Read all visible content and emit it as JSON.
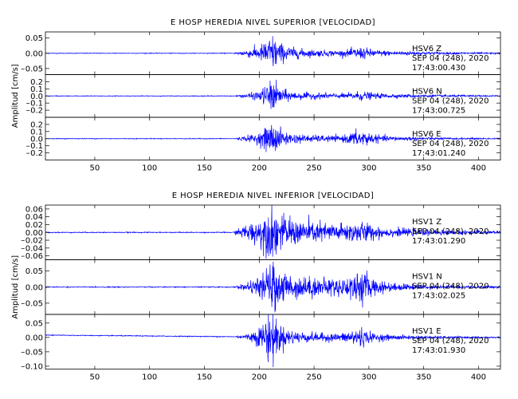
{
  "chart_data": [
    {
      "type": "line",
      "title": "E HOSP HEREDIA NIVEL SUPERIOR [VELOCIDAD]",
      "ylabel": "Amplitud [cm/s]",
      "xlim": [
        5,
        420
      ],
      "xticks": [
        50,
        100,
        150,
        200,
        250,
        300,
        350,
        400
      ],
      "series": [
        {
          "name": "HSV6 Z",
          "date": "SEP 04 (248), 2020",
          "time": "17:43:00.430",
          "ylim": [
            -0.07,
            0.07
          ],
          "yticks": [
            0.05,
            0.0,
            -0.05
          ],
          "yticklabels": [
            "0.05",
            "0.00",
            "0.05"
          ],
          "onset": 175,
          "peak": 0.055,
          "peak_time": 212,
          "x": [
            5,
            175,
            190,
            200,
            207,
            212,
            217,
            222,
            232,
            245,
            260,
            275,
            285,
            292,
            298,
            305,
            320,
            340,
            360,
            385,
            420
          ],
          "y": [
            0.0,
            0.0,
            0.012,
            0.02,
            0.04,
            0.055,
            0.038,
            0.024,
            0.016,
            0.011,
            0.009,
            0.008,
            0.013,
            0.018,
            0.015,
            0.01,
            0.007,
            0.006,
            0.004,
            0.003,
            0.002
          ]
        },
        {
          "name": "HSV6 N",
          "date": "SEP 04 (248), 2020",
          "time": "17:43:00.725",
          "ylim": [
            -0.3,
            0.3
          ],
          "yticks": [
            0.2,
            0.1,
            0.0,
            -0.1,
            -0.2
          ],
          "yticklabels": [
            "0.2",
            "0.1",
            "0.0",
            "0.1",
            "0.2"
          ],
          "onset": 175,
          "peak": 0.2,
          "peak_time": 212,
          "x": [
            5,
            175,
            190,
            200,
            207,
            212,
            217,
            222,
            232,
            245,
            260,
            275,
            285,
            292,
            298,
            305,
            320,
            340,
            360,
            385,
            420
          ],
          "y": [
            0.0,
            0.0,
            0.03,
            0.06,
            0.14,
            0.2,
            0.13,
            0.08,
            0.05,
            0.04,
            0.035,
            0.03,
            0.045,
            0.06,
            0.05,
            0.035,
            0.025,
            0.02,
            0.015,
            0.012,
            0.008
          ]
        },
        {
          "name": "HSV6 E",
          "date": "SEP 04 (248), 2020",
          "time": "17:43:01.240",
          "ylim": [
            -0.3,
            0.3
          ],
          "yticks": [
            0.2,
            0.1,
            0.0,
            -0.1,
            -0.2
          ],
          "yticklabels": [
            "0.2",
            "0.1",
            "0.0",
            "0.1",
            "0.2"
          ],
          "onset": 175,
          "peak": 0.22,
          "peak_time": 212,
          "x": [
            5,
            175,
            190,
            200,
            207,
            212,
            217,
            222,
            232,
            245,
            260,
            275,
            285,
            292,
            298,
            305,
            320,
            340,
            360,
            385,
            420
          ],
          "y": [
            0.0,
            0.0,
            0.04,
            0.07,
            0.15,
            0.22,
            0.14,
            0.09,
            0.06,
            0.045,
            0.04,
            0.035,
            0.08,
            0.11,
            0.09,
            0.05,
            0.03,
            0.022,
            0.015,
            0.01,
            0.008
          ]
        }
      ],
      "xticklabels": [
        "50",
        "100",
        "150",
        "200",
        "250",
        "300",
        "350",
        "400"
      ]
    },
    {
      "type": "line",
      "title": "E HOSP HEREDIA NIVEL INFERIOR [VELOCIDAD]",
      "ylabel": "Amplitud [cm/s]",
      "xlim": [
        5,
        420
      ],
      "xticks": [
        50,
        100,
        150,
        200,
        250,
        300,
        350,
        400
      ],
      "series": [
        {
          "name": "HSV1 Z",
          "date": "SEP 04 (248), 2020",
          "time": "17:43:01.290",
          "ylim": [
            -0.07,
            0.07
          ],
          "yticks": [
            0.06,
            0.04,
            0.02,
            0.0,
            -0.02,
            -0.04,
            -0.06
          ],
          "yticklabels": [
            "0.06",
            "0.04",
            "0.02",
            "0.00",
            "0.02",
            "0.04",
            "0.06"
          ],
          "onset": 175,
          "peak": 0.065,
          "peak_time": 212,
          "x": [
            5,
            175,
            190,
            200,
            207,
            212,
            217,
            222,
            232,
            245,
            260,
            275,
            285,
            292,
            298,
            305,
            320,
            340,
            360,
            385,
            420
          ],
          "y": [
            0.0,
            0.0,
            0.02,
            0.03,
            0.05,
            0.065,
            0.045,
            0.035,
            0.03,
            0.025,
            0.022,
            0.02,
            0.022,
            0.026,
            0.022,
            0.015,
            0.01,
            0.008,
            0.006,
            0.005,
            0.004
          ]
        },
        {
          "name": "HSV1 N",
          "date": "SEP 04 (248), 2020",
          "time": "17:43:02.025",
          "ylim": [
            -0.085,
            0.085
          ],
          "yticks": [
            0.05,
            0.0,
            -0.05
          ],
          "yticklabels": [
            "0.05",
            "0.00",
            "0.05"
          ],
          "onset": 175,
          "peak": 0.07,
          "peak_time": 212,
          "x": [
            5,
            175,
            190,
            200,
            207,
            212,
            217,
            222,
            232,
            245,
            260,
            275,
            285,
            292,
            298,
            305,
            320,
            340,
            360,
            385,
            420
          ],
          "y": [
            0.0,
            0.0,
            0.012,
            0.025,
            0.05,
            0.07,
            0.055,
            0.04,
            0.032,
            0.028,
            0.025,
            0.024,
            0.035,
            0.045,
            0.038,
            0.022,
            0.012,
            0.008,
            0.005,
            0.004,
            0.003
          ]
        },
        {
          "name": "HSV1 E",
          "date": "SEP 04 (248), 2020",
          "time": "17:43:01.930",
          "ylim": [
            -0.11,
            0.08
          ],
          "yticks": [
            0.05,
            0.0,
            -0.05,
            -0.1
          ],
          "yticklabels": [
            "0.05",
            "0.00",
            "0.05",
            "0.10"
          ],
          "onset": 175,
          "peak": 0.095,
          "peak_time": 210,
          "baseline_start": 0.008,
          "x": [
            5,
            175,
            190,
            200,
            207,
            212,
            217,
            222,
            232,
            245,
            260,
            275,
            285,
            292,
            298,
            305,
            320,
            340,
            360,
            385,
            420
          ],
          "y": [
            0.0,
            0.0,
            0.01,
            0.03,
            0.07,
            0.095,
            0.05,
            0.03,
            0.02,
            0.015,
            0.013,
            0.012,
            0.025,
            0.035,
            0.02,
            0.012,
            0.008,
            0.006,
            0.004,
            0.003,
            0.002
          ]
        }
      ],
      "xticklabels": [
        "50",
        "100",
        "150",
        "200",
        "250",
        "300",
        "350",
        "400"
      ]
    }
  ]
}
